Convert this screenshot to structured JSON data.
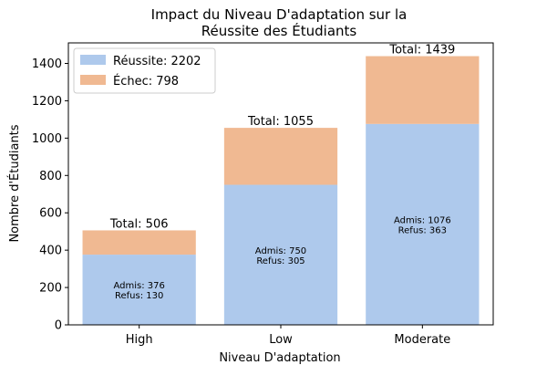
{
  "chart_data": {
    "type": "bar",
    "stacked": true,
    "title_lines": [
      "Impact du Niveau D'adaptation sur la",
      "Réussite des Étudiants"
    ],
    "xlabel": "Niveau D'adaptation",
    "ylabel": "Nombre d'Étudiants",
    "categories": [
      "High",
      "Low",
      "Moderate"
    ],
    "ylim": [
      0,
      1510
    ],
    "yticks": [
      0,
      200,
      400,
      600,
      800,
      1000,
      1200,
      1400
    ],
    "grid": false,
    "legend_position": "top-left",
    "legend": [
      "Réussite: 2202",
      "Échec: 798"
    ],
    "series": [
      {
        "name": "Réussite",
        "color": "#aec9ec",
        "values": [
          376,
          750,
          1076
        ]
      },
      {
        "name": "Échec",
        "color": "#f0b992",
        "values": [
          130,
          305,
          363
        ]
      }
    ],
    "total_labels": [
      "Total: 506",
      "Total: 1055",
      "Total: 1439"
    ],
    "inbar_labels": [
      [
        "Admis: 376",
        "Refus: 130"
      ],
      [
        "Admis: 750",
        "Refus: 305"
      ],
      [
        "Admis: 1076",
        "Refus: 363"
      ]
    ]
  }
}
